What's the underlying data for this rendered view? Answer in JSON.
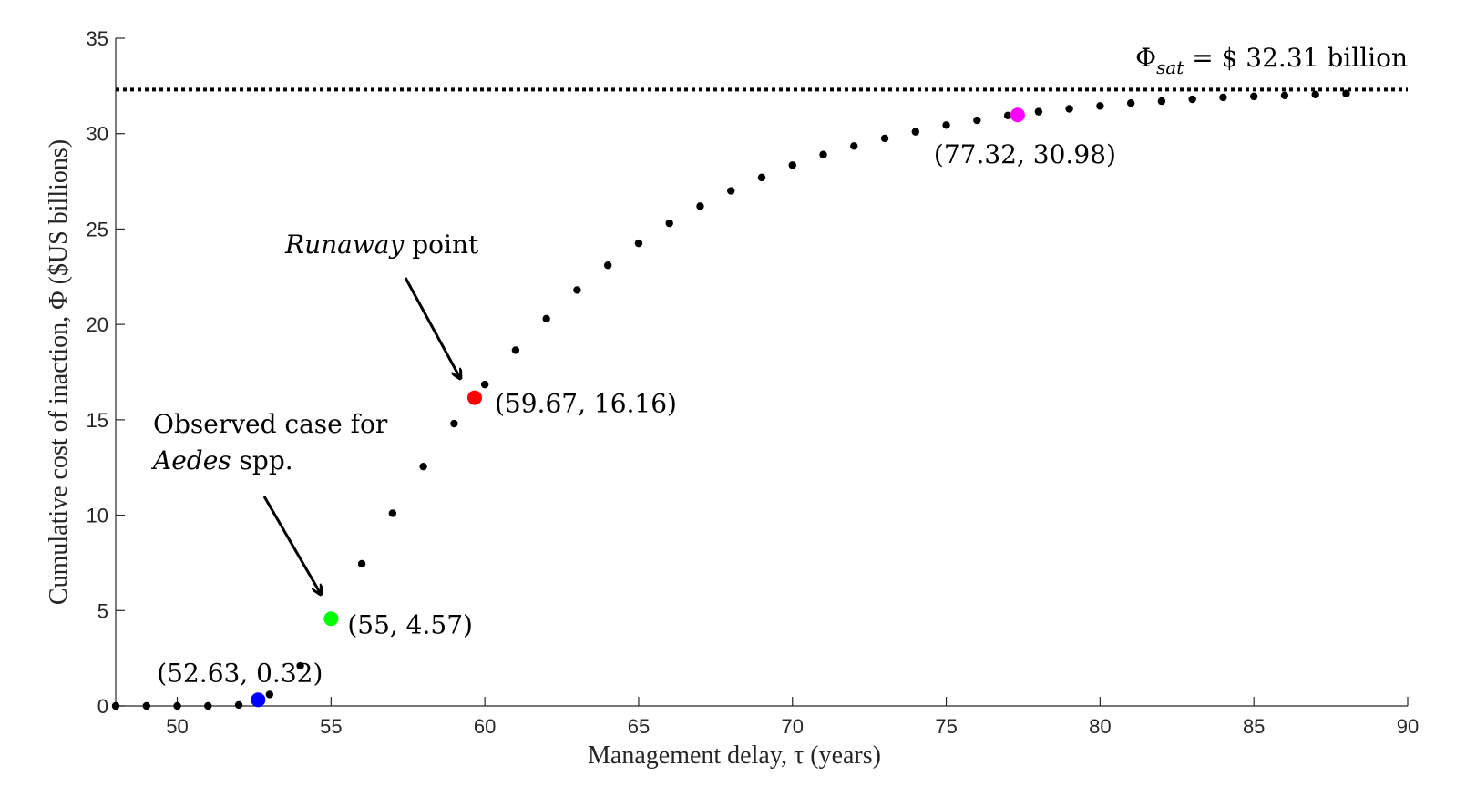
{
  "chart_data": {
    "type": "scatter",
    "xlabel": "Management delay, τ (years)",
    "ylabel": "Cumulative cost of inaction, Φ ($US billions)",
    "xlim": [
      48,
      90
    ],
    "ylim": [
      0,
      35
    ],
    "xticks": [
      50,
      55,
      60,
      65,
      70,
      75,
      80,
      85,
      90
    ],
    "yticks": [
      0,
      5,
      10,
      15,
      20,
      25,
      30,
      35
    ],
    "grid": false,
    "series": [
      {
        "x": [
          48,
          49,
          50,
          51,
          52,
          53,
          54,
          56,
          57,
          58,
          59,
          60,
          61,
          62,
          63,
          64,
          65,
          66,
          67,
          68,
          69,
          70,
          71,
          72,
          73,
          74,
          75,
          76,
          77,
          78,
          79,
          80,
          81,
          82,
          83,
          84,
          85,
          86,
          87,
          88
        ],
        "y": [
          0,
          0,
          0,
          0,
          0.05,
          0.6,
          2.1,
          7.45,
          10.1,
          12.55,
          14.8,
          16.85,
          18.65,
          20.3,
          21.8,
          23.1,
          24.25,
          25.3,
          26.2,
          27.0,
          27.7,
          28.35,
          28.9,
          29.35,
          29.75,
          30.1,
          30.45,
          30.7,
          30.95,
          31.15,
          31.3,
          31.45,
          31.6,
          31.7,
          31.8,
          31.9,
          31.95,
          32.0,
          32.05,
          32.1
        ],
        "color": "#000000"
      }
    ],
    "highlights": [
      {
        "x": 52.63,
        "y": 0.32,
        "color": "#0000ff",
        "label": "(52.63, 0.32)"
      },
      {
        "x": 55,
        "y": 4.57,
        "color": "#00ff00",
        "label": "(55, 4.57)"
      },
      {
        "x": 59.67,
        "y": 16.16,
        "color": "#ff0000",
        "label": "(59.67, 16.16)"
      },
      {
        "x": 77.32,
        "y": 30.98,
        "color": "#ff00ff",
        "label": "(77.32, 30.98)"
      }
    ],
    "saturation": {
      "value": 32.31,
      "symbol": "Φ",
      "subscript": "sat",
      "text": "= $ 32.31 billion"
    },
    "annotations": {
      "runaway": {
        "italic": "Runaway",
        "rest": " point"
      },
      "observed": {
        "line1": "Observed case for",
        "italic": "Aedes",
        "rest": " spp."
      }
    }
  }
}
